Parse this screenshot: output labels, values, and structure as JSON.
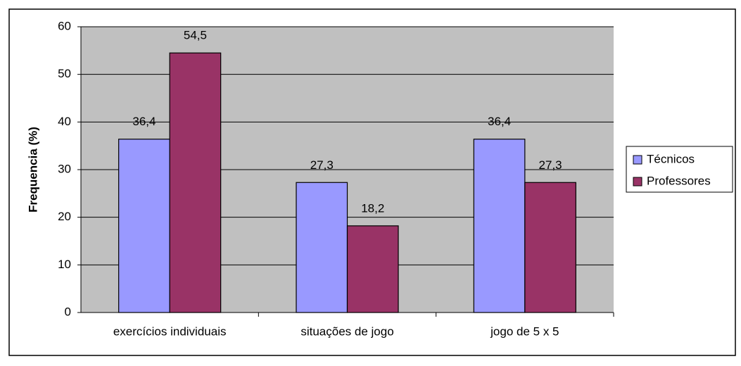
{
  "chart_data": {
    "type": "bar",
    "y_label": "Frequencia (%)",
    "categories": [
      "exercícios individuais",
      "situações de jogo",
      "jogo de 5 x 5"
    ],
    "series": [
      {
        "name": "Técnicos",
        "color": "#9999ff",
        "values": [
          36.4,
          27.3,
          36.4
        ],
        "value_labels": [
          "36,4",
          "27,3",
          "36,4"
        ]
      },
      {
        "name": "Professores",
        "color": "#993366",
        "values": [
          54.5,
          18.2,
          27.3
        ],
        "value_labels": [
          "54,5",
          "18,2",
          "27,3"
        ]
      }
    ],
    "ylim": [
      0,
      60
    ],
    "yticks": [
      0,
      10,
      20,
      30,
      40,
      50,
      60
    ],
    "grid": true,
    "legend": "right"
  }
}
